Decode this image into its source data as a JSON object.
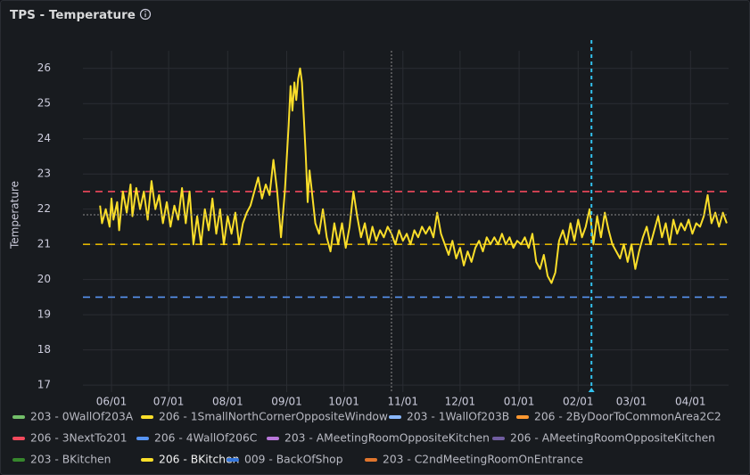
{
  "chart_data": {
    "type": "line",
    "title": "TPS - Temperature",
    "ylabel": "Temperature",
    "xlim": [
      -15,
      324
    ],
    "ylim": [
      16.8,
      26.5
    ],
    "xticks": [
      {
        "value": 0,
        "label": "06/01"
      },
      {
        "value": 30,
        "label": "07/01"
      },
      {
        "value": 61,
        "label": "08/01"
      },
      {
        "value": 92,
        "label": "09/01"
      },
      {
        "value": 122,
        "label": "10/01"
      },
      {
        "value": 153,
        "label": "11/01"
      },
      {
        "value": 183,
        "label": "12/01"
      },
      {
        "value": 214,
        "label": "01/01"
      },
      {
        "value": 245,
        "label": "02/01"
      },
      {
        "value": 273,
        "label": "03/01"
      },
      {
        "value": 304,
        "label": "04/01"
      }
    ],
    "yticks": [
      17,
      18,
      19,
      20,
      21,
      22,
      23,
      24,
      25,
      26
    ],
    "grid": true,
    "thresholds": [
      {
        "value": 22.5,
        "color": "#f2495c"
      },
      {
        "value": 21,
        "color": "#e0b400"
      },
      {
        "value": 19.5,
        "color": "#5794f2"
      }
    ],
    "crosshair": {
      "x": 147,
      "y": 21.84
    },
    "cursor_x": 252,
    "legend": "bottom-left",
    "series": [
      {
        "name": "203 - 0WallOf203A",
        "color": "#73bf69",
        "x": [],
        "values": []
      },
      {
        "name": "206 - 1SmallNorthCornerOppositeWindow",
        "color": "#fade2a",
        "x": [],
        "values": []
      },
      {
        "name": "203 - 1WallOf203B",
        "color": "#8ab8ff",
        "x": [],
        "values": []
      },
      {
        "name": "206 - 2ByDoorToCommonArea2C2",
        "color": "#ff9830",
        "x": [],
        "values": []
      },
      {
        "name": "206 - 3NextTo201",
        "color": "#f2495c",
        "x": [],
        "values": []
      },
      {
        "name": "206 - 4WallOf206C",
        "color": "#5794f2",
        "x": [],
        "values": []
      },
      {
        "name": "203 - AMeetingRoomOppositeKitchen",
        "color": "#b877d9",
        "x": [],
        "values": []
      },
      {
        "name": "206 - AMeetingRoomOppositeKitchen",
        "color": "#705da0",
        "x": [],
        "values": []
      },
      {
        "name": "203 - BKitchen",
        "color": "#37872d",
        "x": [],
        "values": []
      },
      {
        "name": "206 - BKitchen",
        "color": "#fade2a",
        "x": [
          -6,
          -5,
          -3,
          -1,
          0,
          1,
          3,
          4,
          6,
          8,
          10,
          11,
          13,
          15,
          17,
          19,
          21,
          23,
          25,
          27,
          29,
          31,
          33,
          35,
          37,
          39,
          41,
          43,
          45,
          47,
          49,
          51,
          53,
          55,
          57,
          59,
          61,
          63,
          65,
          67,
          69,
          71,
          73,
          75,
          77,
          79,
          81,
          83,
          85,
          87,
          89,
          91,
          93,
          94,
          95,
          96,
          97,
          98,
          99,
          100,
          101,
          102,
          103,
          104,
          105,
          107,
          109,
          111,
          113,
          115,
          117,
          119,
          121,
          123,
          125,
          127,
          129,
          131,
          133,
          135,
          137,
          139,
          141,
          143,
          145,
          147,
          149,
          151,
          153,
          155,
          157,
          159,
          161,
          163,
          165,
          167,
          169,
          171,
          173,
          175,
          177,
          179,
          181,
          183,
          185,
          187,
          189,
          191,
          193,
          195,
          197,
          199,
          201,
          203,
          205,
          207,
          209,
          211,
          213,
          215,
          217,
          219,
          221,
          223,
          225,
          227,
          229,
          231,
          233,
          235,
          237,
          239,
          241,
          243,
          245,
          247,
          249,
          251,
          253,
          255,
          257,
          259,
          261,
          263,
          265,
          267,
          269,
          271,
          273,
          275,
          277,
          279,
          281,
          283,
          285,
          287,
          289,
          291,
          293,
          295,
          297,
          299,
          301,
          303,
          305,
          307,
          309,
          311,
          313,
          315,
          317,
          319,
          321,
          323
        ],
        "values": [
          22.1,
          21.6,
          22.0,
          21.5,
          22.3,
          21.7,
          22.2,
          21.4,
          22.5,
          21.9,
          22.7,
          21.8,
          22.6,
          22.0,
          22.5,
          21.7,
          22.8,
          22.0,
          22.4,
          21.6,
          22.2,
          21.5,
          22.1,
          21.7,
          22.6,
          21.6,
          22.5,
          21.0,
          21.8,
          21.0,
          22.0,
          21.4,
          22.3,
          21.3,
          22.0,
          21.0,
          21.8,
          21.3,
          21.9,
          21.0,
          21.6,
          21.9,
          22.1,
          22.5,
          22.9,
          22.3,
          22.7,
          22.4,
          23.4,
          22.5,
          21.2,
          22.5,
          24.4,
          25.5,
          24.8,
          25.6,
          25.1,
          25.7,
          26.0,
          25.6,
          24.6,
          23.5,
          22.2,
          23.1,
          22.6,
          21.6,
          21.3,
          22.0,
          21.2,
          20.8,
          21.6,
          21.0,
          21.6,
          20.9,
          21.5,
          22.5,
          21.8,
          21.2,
          21.6,
          21.0,
          21.5,
          21.1,
          21.4,
          21.2,
          21.5,
          21.3,
          21.0,
          21.4,
          21.1,
          21.3,
          21.0,
          21.4,
          21.2,
          21.5,
          21.3,
          21.5,
          21.2,
          21.9,
          21.3,
          21.0,
          20.7,
          21.1,
          20.6,
          20.9,
          20.4,
          20.8,
          20.5,
          20.9,
          21.1,
          20.8,
          21.2,
          21.0,
          21.2,
          21.0,
          21.3,
          21.0,
          21.2,
          20.9,
          21.1,
          21.0,
          21.2,
          20.9,
          21.3,
          20.5,
          20.3,
          20.7,
          20.1,
          19.9,
          20.2,
          21.1,
          21.4,
          21.0,
          21.6,
          21.1,
          21.7,
          21.2,
          21.5,
          22.0,
          21.0,
          21.8,
          21.2,
          21.9,
          21.4,
          21.0,
          20.8,
          20.6,
          21.0,
          20.5,
          21.0,
          20.3,
          20.8,
          21.2,
          21.5,
          21.0,
          21.4,
          21.8,
          21.2,
          21.6,
          21.0,
          21.7,
          21.3,
          21.6,
          21.4,
          21.7,
          21.3,
          21.6,
          21.5,
          21.8,
          22.4,
          21.6,
          21.9,
          21.5,
          21.9,
          21.6
        ]
      },
      {
        "name": "009 - BackOfShop",
        "color": "#3274d9",
        "x": [],
        "values": []
      },
      {
        "name": "203 - C2ndMeetingRoomOnEntrance",
        "color": "#e0752d",
        "x": [],
        "values": []
      }
    ]
  }
}
